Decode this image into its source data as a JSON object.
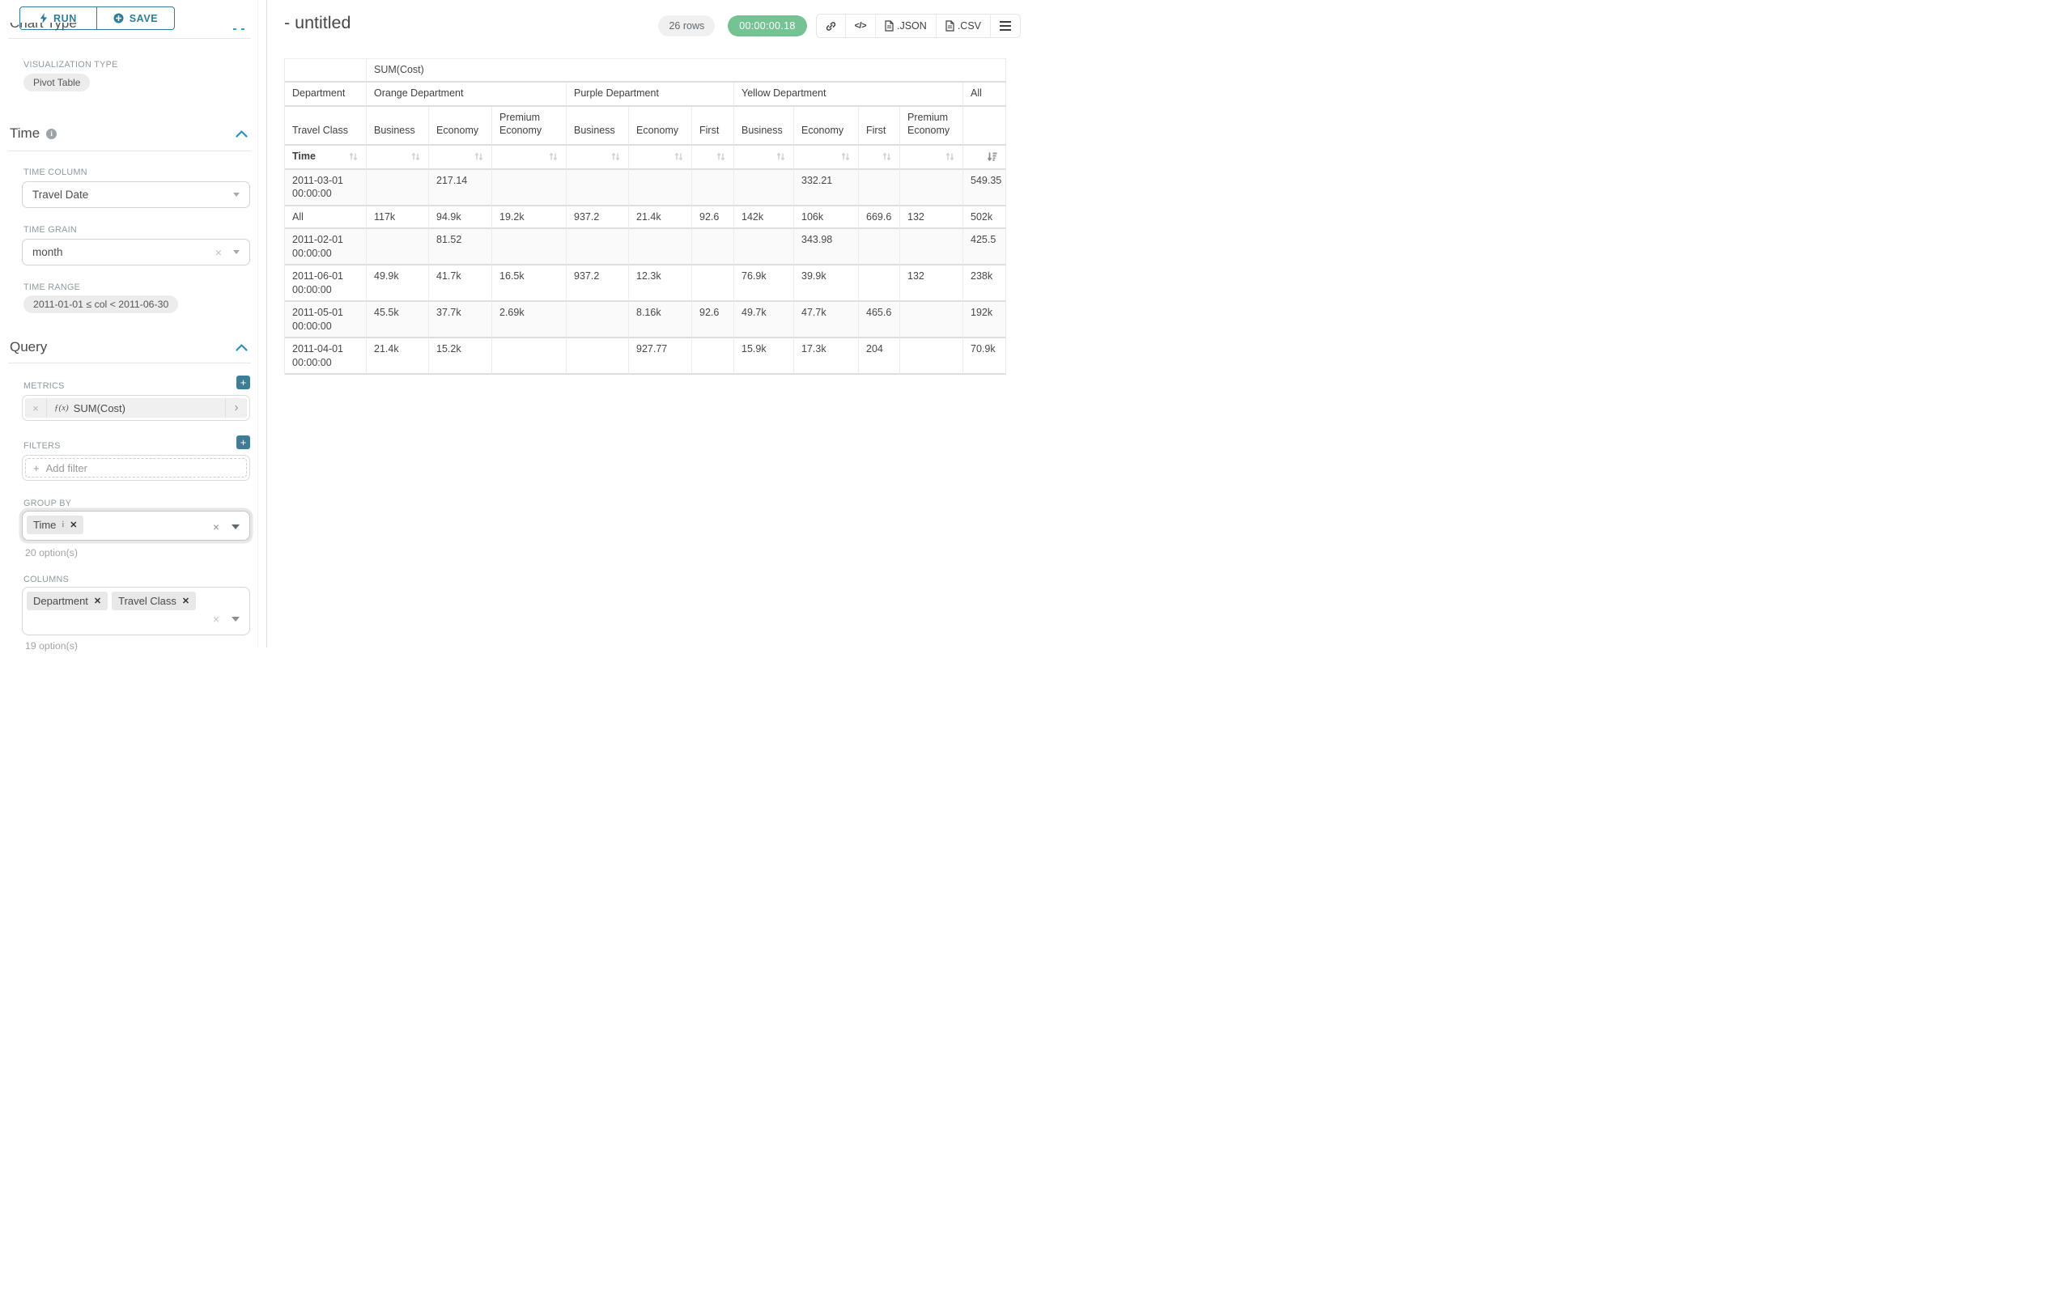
{
  "toolbar": {
    "run_label": "RUN",
    "save_label": "SAVE"
  },
  "sidebar": {
    "clipped_heading": "Chart Type",
    "viz_type": {
      "label": "VISUALIZATION TYPE",
      "value": "Pivot Table"
    },
    "time_section": {
      "heading": "Time",
      "time_column": {
        "label": "TIME COLUMN",
        "value": "Travel Date"
      },
      "time_grain": {
        "label": "TIME GRAIN",
        "value": "month"
      },
      "time_range": {
        "label": "TIME RANGE",
        "value": "2011-01-01 ≤ col < 2011-06-30"
      }
    },
    "query_section": {
      "heading": "Query",
      "metrics": {
        "label": "METRICS",
        "metric_fx": "ƒ(x)",
        "metric_name": "SUM(Cost)"
      },
      "filters": {
        "label": "FILTERS",
        "placeholder": "Add filter"
      },
      "group_by": {
        "label": "GROUP BY",
        "tags": [
          {
            "label": "Time",
            "info": true
          }
        ],
        "options_hint": "20 option(s)"
      },
      "columns": {
        "label": "COLUMNS",
        "tags": [
          {
            "label": "Department"
          },
          {
            "label": "Travel Class"
          }
        ],
        "options_hint": "19 option(s)"
      }
    }
  },
  "header": {
    "title": "- untitled",
    "rows_badge": "26 rows",
    "timer": "00:00:00.18",
    "json_label": ".JSON",
    "csv_label": ".CSV"
  },
  "icons": {
    "plus": "+",
    "clear_x": "×",
    "tag_remove": "✕",
    "chevron_right": "›",
    "code": "</>",
    "info": "i"
  },
  "colors": {
    "primary_teal": "#2e7d96",
    "plus_button_teal": "#3d7e96",
    "accent_blue": "#2d9fd0",
    "success_green": "#75c293",
    "pill_gray": "#ececec",
    "tag_gray": "#e8e8e8"
  },
  "pivot_table": {
    "metric_header": "SUM(Cost)",
    "row_dim_label": "Department",
    "row_subdim_label": "Travel Class",
    "sort_label": "Time",
    "column_groups": [
      {
        "label": "Orange Department",
        "span": 3
      },
      {
        "label": "Purple Department",
        "span": 3
      },
      {
        "label": "Yellow Department",
        "span": 4
      },
      {
        "label": "All",
        "span": 1
      }
    ],
    "column_classes": [
      "Business",
      "Economy",
      "Premium Economy",
      "Business",
      "Economy",
      "First",
      "Business",
      "Economy",
      "First",
      "Premium Economy",
      ""
    ],
    "rows": [
      {
        "label": "2011-03-01 00:00:00",
        "values": [
          "",
          "217.14",
          "",
          "",
          "",
          "",
          "",
          "332.21",
          "",
          "",
          "549.35"
        ]
      },
      {
        "label": "All",
        "values": [
          "117k",
          "94.9k",
          "19.2k",
          "937.2",
          "21.4k",
          "92.6",
          "142k",
          "106k",
          "669.6",
          "132",
          "502k"
        ]
      },
      {
        "label": "2011-02-01 00:00:00",
        "values": [
          "",
          "81.52",
          "",
          "",
          "",
          "",
          "",
          "343.98",
          "",
          "",
          "425.5"
        ]
      },
      {
        "label": "2011-06-01 00:00:00",
        "values": [
          "49.9k",
          "41.7k",
          "16.5k",
          "937.2",
          "12.3k",
          "",
          "76.9k",
          "39.9k",
          "",
          "132",
          "238k"
        ]
      },
      {
        "label": "2011-05-01 00:00:00",
        "values": [
          "45.5k",
          "37.7k",
          "2.69k",
          "",
          "8.16k",
          "92.6",
          "49.7k",
          "47.7k",
          "465.6",
          "",
          "192k"
        ]
      },
      {
        "label": "2011-04-01 00:00:00",
        "values": [
          "21.4k",
          "15.2k",
          "",
          "",
          "927.77",
          "",
          "15.9k",
          "17.3k",
          "204",
          "",
          "70.9k"
        ]
      }
    ]
  }
}
